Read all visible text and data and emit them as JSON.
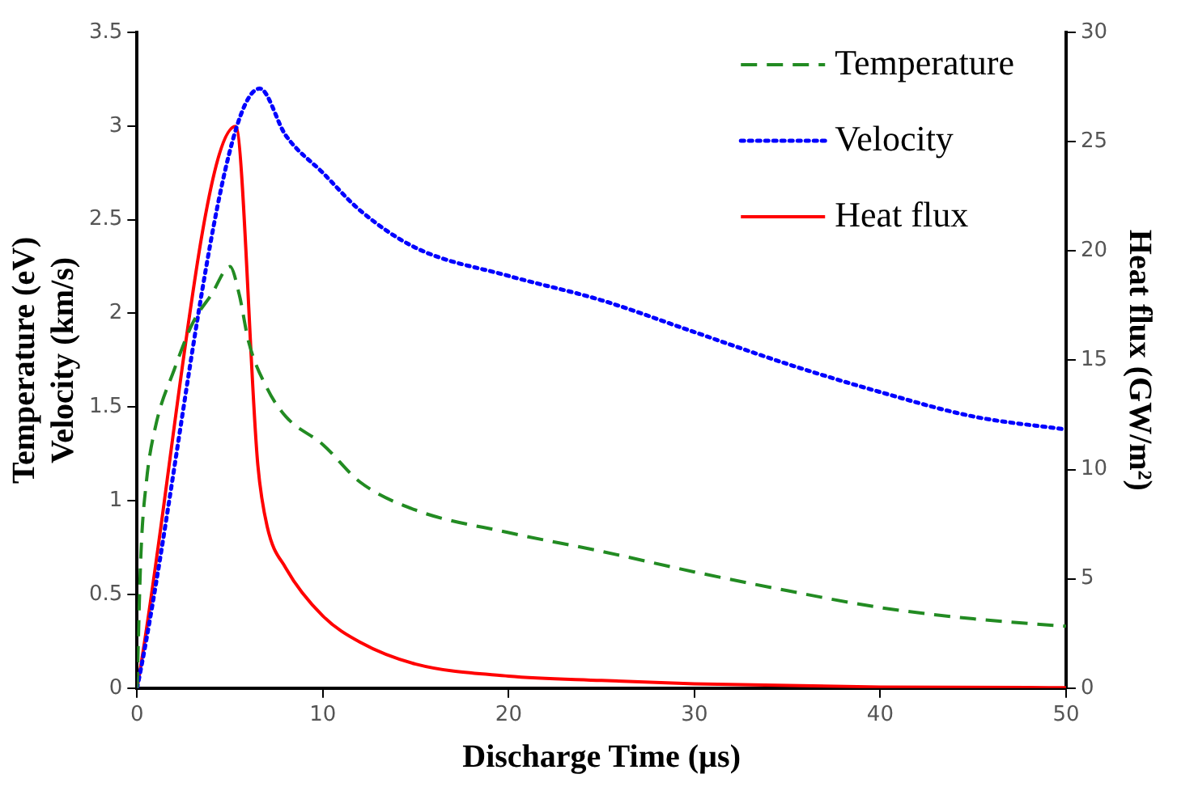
{
  "chart_data": {
    "type": "line",
    "xlabel": "Discharge Time (µs)",
    "ylabel": "Temperature (eV)\nVelocity (km/s)",
    "y2label": "Heat flux (GW/m²)",
    "xlim": [
      0,
      50
    ],
    "xticks": [
      0,
      10,
      20,
      30,
      40,
      50
    ],
    "ylim": [
      0,
      3.5
    ],
    "yticks": [
      0,
      0.5,
      1,
      1.5,
      2,
      2.5,
      3,
      3.5
    ],
    "y2lim": [
      0,
      30
    ],
    "y2ticks": [
      0,
      5,
      10,
      15,
      20,
      25,
      30
    ],
    "grid": false,
    "legend": "top right",
    "marker": "none",
    "series": [
      {
        "name": "Temperature",
        "color": "#228b22",
        "line_style": "dashed",
        "x": [
          0,
          0.2,
          0.5,
          1,
          2,
          3,
          4,
          5,
          5.5,
          6,
          7,
          8,
          10,
          12,
          15,
          20,
          25,
          30,
          35,
          40,
          45,
          50
        ],
        "values": [
          0,
          0.7,
          1.1,
          1.4,
          1.7,
          1.95,
          2.1,
          2.25,
          2.1,
          1.85,
          1.6,
          1.45,
          1.3,
          1.1,
          0.95,
          0.83,
          0.73,
          0.62,
          0.52,
          0.43,
          0.37,
          0.33
        ]
      },
      {
        "name": "Velocity",
        "color": "#0000ff",
        "line_style": "dotted",
        "x": [
          0,
          6.6,
          8,
          10,
          12,
          15,
          20,
          25,
          30,
          35,
          40,
          45,
          50
        ],
        "values": [
          0,
          3.2,
          2.95,
          2.75,
          2.55,
          2.35,
          2.2,
          2.07,
          1.9,
          1.73,
          1.58,
          1.45,
          1.38
        ]
      },
      {
        "name": "Heat flux",
        "color": "#ff0000",
        "line_style": "solid",
        "axis": "y2",
        "x": [
          0,
          5.3,
          6.5,
          7,
          8,
          10,
          12,
          15,
          20,
          25,
          30,
          40,
          50
        ],
        "values": [
          0,
          25.7,
          10.2,
          7.4,
          5.5,
          3.3,
          2.1,
          1.1,
          0.55,
          0.35,
          0.2,
          0.05,
          0.02
        ]
      }
    ]
  }
}
